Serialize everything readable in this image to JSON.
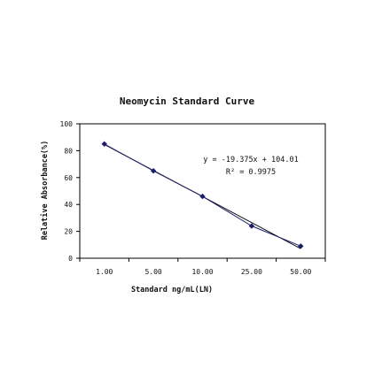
{
  "chart_data": {
    "type": "scatter",
    "title": "Neomycin Standard Curve",
    "xlabel": "Standard ng/mL(LN)",
    "ylabel": "Relative Absorbance(%)",
    "categories": [
      "1.00",
      "5.00",
      "10.00",
      "25.00",
      "50.00"
    ],
    "ylim": [
      0,
      100
    ],
    "yticks": [
      "0",
      "20",
      "40",
      "60",
      "80",
      "100"
    ],
    "series": [
      {
        "values": [
          85,
          65,
          46,
          24,
          9
        ]
      }
    ],
    "trendline": {
      "slope": -19.375,
      "intercept": 104.01
    },
    "equation": "y = -19.375x + 104.01",
    "r_squared": "R² = 0.9975",
    "colors": {
      "series": "#1b1f6b",
      "trendline": "#111111",
      "axis": "#000000"
    },
    "grid": false,
    "legend": "none"
  }
}
